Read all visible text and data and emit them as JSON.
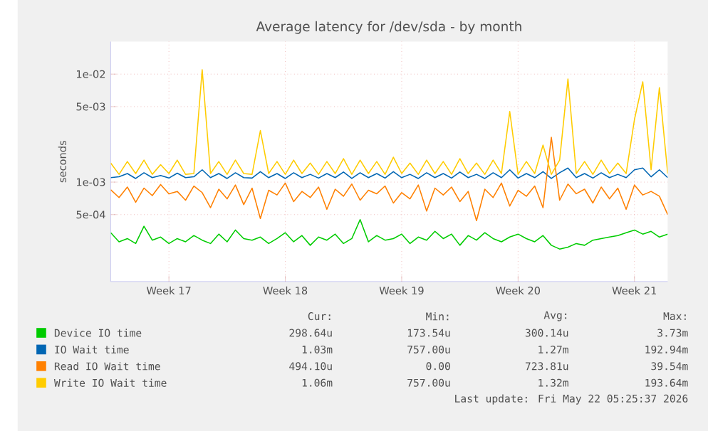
{
  "chart_data": {
    "type": "line",
    "title": "Average latency for /dev/sda - by month",
    "ylabel": "seconds",
    "log": true,
    "grid": true,
    "legend": "bottom",
    "ylim": [
      0.00012,
      0.02
    ],
    "yticks": [
      {
        "value": 0.0005,
        "label": "5e-04"
      },
      {
        "value": 0.001,
        "label": "1e-03"
      },
      {
        "value": 0.005,
        "label": "5e-03"
      },
      {
        "value": 0.01,
        "label": "1e-02"
      }
    ],
    "categories": [
      null,
      null,
      null,
      null,
      null,
      null,
      null,
      "Week 17",
      null,
      null,
      null,
      null,
      null,
      null,
      null,
      null,
      null,
      null,
      null,
      null,
      null,
      "Week 18",
      null,
      null,
      null,
      null,
      null,
      null,
      null,
      null,
      null,
      null,
      null,
      null,
      null,
      "Week 19",
      null,
      null,
      null,
      null,
      null,
      null,
      null,
      null,
      null,
      null,
      null,
      null,
      null,
      "Week 20",
      null,
      null,
      null,
      null,
      null,
      null,
      null,
      null,
      null,
      null,
      null,
      null,
      null,
      "Week 21",
      null,
      null,
      null,
      null
    ],
    "series": [
      {
        "name": "Device IO time",
        "color": "#00cc00",
        "values": [
          0.00034,
          0.00028,
          0.0003,
          0.00027,
          0.00039,
          0.00029,
          0.00031,
          0.00027,
          0.0003,
          0.00028,
          0.00032,
          0.00029,
          0.00027,
          0.00033,
          0.00028,
          0.00036,
          0.0003,
          0.00029,
          0.00031,
          0.00027,
          0.0003,
          0.00034,
          0.00028,
          0.00032,
          0.00026,
          0.00031,
          0.00029,
          0.00033,
          0.00027,
          0.0003,
          0.00045,
          0.00028,
          0.00032,
          0.00029,
          0.0003,
          0.00033,
          0.00027,
          0.00031,
          0.00029,
          0.00035,
          0.0003,
          0.00033,
          0.00026,
          0.00032,
          0.00029,
          0.00034,
          0.0003,
          0.00028,
          0.00031,
          0.00033,
          0.0003,
          0.00028,
          0.00032,
          0.00026,
          0.00024,
          0.00025,
          0.00027,
          0.00026,
          0.00029,
          0.0003,
          0.00031,
          0.00032,
          0.00034,
          0.00036,
          0.00033,
          0.00035,
          0.00031,
          0.00033
        ]
      },
      {
        "name": "IO Wait time",
        "color": "#0066b3",
        "values": [
          0.0011,
          0.00112,
          0.0012,
          0.00108,
          0.00122,
          0.0011,
          0.00115,
          0.00109,
          0.00121,
          0.0011,
          0.00112,
          0.0013,
          0.0011,
          0.0012,
          0.00108,
          0.00122,
          0.0011,
          0.00109,
          0.00125,
          0.0011,
          0.0012,
          0.00108,
          0.00122,
          0.0011,
          0.00118,
          0.00109,
          0.0012,
          0.0011,
          0.00124,
          0.00108,
          0.00122,
          0.0011,
          0.0012,
          0.00109,
          0.00125,
          0.0011,
          0.00118,
          0.00108,
          0.00122,
          0.0011,
          0.0012,
          0.00109,
          0.00124,
          0.0011,
          0.00118,
          0.00108,
          0.00122,
          0.0011,
          0.0013,
          0.00109,
          0.0012,
          0.0011,
          0.00125,
          0.00108,
          0.00122,
          0.00135,
          0.0011,
          0.0012,
          0.00109,
          0.00122,
          0.0011,
          0.00118,
          0.0011,
          0.0013,
          0.00135,
          0.00112,
          0.0013,
          0.0011
        ]
      },
      {
        "name": "Read IO Wait time",
        "color": "#ff8000",
        "values": [
          0.00085,
          0.00072,
          0.0009,
          0.00065,
          0.00088,
          0.00075,
          0.00095,
          0.00078,
          0.00082,
          0.00068,
          0.00092,
          0.0008,
          0.00058,
          0.00086,
          0.0007,
          0.00094,
          0.00062,
          0.00088,
          0.00046,
          0.00084,
          0.00076,
          0.00098,
          0.00066,
          0.00082,
          0.00072,
          0.0009,
          0.00056,
          0.00086,
          0.00074,
          0.00096,
          0.00068,
          0.00084,
          0.00078,
          0.00092,
          0.00064,
          0.0008,
          0.0007,
          0.00094,
          0.00054,
          0.00088,
          0.00076,
          0.0009,
          0.00066,
          0.00082,
          0.00044,
          0.00086,
          0.00072,
          0.00098,
          0.0006,
          0.00084,
          0.00074,
          0.00092,
          0.00058,
          0.0026,
          0.00068,
          0.00096,
          0.00078,
          0.00086,
          0.00064,
          0.0009,
          0.0007,
          0.00088,
          0.00056,
          0.00094,
          0.00076,
          0.00082,
          0.00074,
          0.0005
        ]
      },
      {
        "name": "Write IO Wait time",
        "color": "#ffcc00",
        "values": [
          0.0015,
          0.00118,
          0.00155,
          0.0012,
          0.0016,
          0.00118,
          0.00145,
          0.0012,
          0.0016,
          0.00118,
          0.0012,
          0.011,
          0.0012,
          0.00155,
          0.00118,
          0.0016,
          0.0012,
          0.00118,
          0.003,
          0.0012,
          0.00155,
          0.00118,
          0.0016,
          0.0012,
          0.0015,
          0.00118,
          0.00155,
          0.0012,
          0.00165,
          0.00118,
          0.0016,
          0.0012,
          0.00155,
          0.00118,
          0.0017,
          0.0012,
          0.0015,
          0.00118,
          0.0016,
          0.0012,
          0.00155,
          0.00118,
          0.00165,
          0.0012,
          0.0015,
          0.00118,
          0.0016,
          0.0012,
          0.0045,
          0.00118,
          0.00155,
          0.0012,
          0.0022,
          0.00118,
          0.0016,
          0.009,
          0.0012,
          0.00155,
          0.00118,
          0.0016,
          0.0012,
          0.0015,
          0.0012,
          0.0038,
          0.0085,
          0.0013,
          0.0075,
          0.0012
        ]
      }
    ],
    "annotations": [
      "Cur:",
      "Min:",
      "Avg:",
      "Max:",
      "298.64u",
      "173.54u",
      "300.14u",
      "3.73m",
      "1.03m",
      "757.00u",
      "1.27m",
      "192.94m",
      "494.10u",
      "0.00",
      "723.81u",
      "39.54m",
      "1.06m",
      "757.00u",
      "1.32m",
      "193.64m",
      "Last update: Fri May 22 05:25:37 2026"
    ]
  }
}
